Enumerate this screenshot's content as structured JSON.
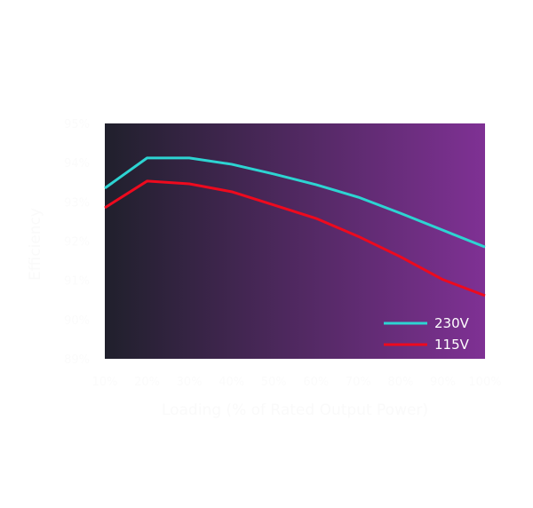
{
  "chart_data": {
    "type": "line",
    "title": "",
    "xlabel": "Loading (% of Rated Output Power)",
    "ylabel": "Efficiency",
    "x": [
      10,
      20,
      30,
      40,
      50,
      60,
      70,
      80,
      90,
      100
    ],
    "x_tick_labels": [
      "10%",
      "20%",
      "30%",
      "40%",
      "50%",
      "60%",
      "70%",
      "80%",
      "90%",
      "100%"
    ],
    "y_tick_labels": [
      "95%",
      "94%",
      "93%",
      "92%",
      "91%",
      "90%",
      "89%"
    ],
    "xlim": [
      10,
      100
    ],
    "ylim": [
      89,
      95
    ],
    "grid": false,
    "legend_position": "lower right",
    "series": [
      {
        "name": "230V",
        "color": "#2dd4d2",
        "values": [
          93.35,
          94.12,
          94.12,
          93.96,
          93.71,
          93.44,
          93.12,
          92.71,
          92.28,
          91.85
        ]
      },
      {
        "name": "115V",
        "color": "#ee0a1e",
        "values": [
          92.85,
          93.53,
          93.46,
          93.26,
          92.92,
          92.58,
          92.12,
          91.6,
          91.02,
          90.61
        ]
      }
    ]
  },
  "style": {
    "plot_gradient_start": "#20202c",
    "plot_gradient_end": "#7f3194"
  }
}
